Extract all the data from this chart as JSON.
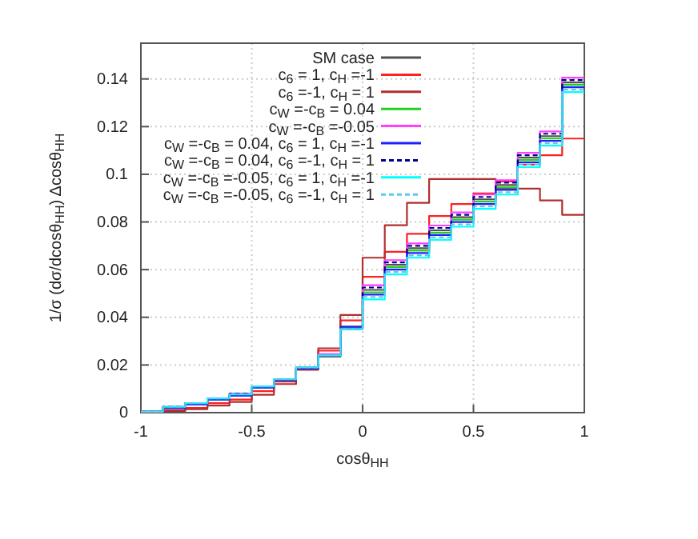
{
  "chart_data": {
    "type": "histogram",
    "xlabel": "cosθ$_{HH}$",
    "ylabel": "1/σ (dσ/dcosθ$_{HH}$) Δcosθ$_{HH}$",
    "bins": [
      -1,
      -0.9,
      -0.8,
      -0.7,
      -0.6,
      -0.5,
      -0.4,
      -0.3,
      -0.2,
      -0.1,
      0,
      0.1,
      0.2,
      0.3,
      0.4,
      0.5,
      0.6,
      0.7,
      0.8,
      0.9,
      1
    ],
    "xlim": [
      -1,
      1
    ],
    "xticks": [
      -1,
      -0.5,
      0,
      0.5,
      1
    ],
    "ylim": [
      0,
      0.155
    ],
    "yticks": [
      0,
      0.02,
      0.04,
      0.06,
      0.08,
      0.1,
      0.12,
      0.14
    ],
    "grid": true,
    "legend": "top left",
    "series": [
      {
        "name": "SM case",
        "color": "#505050",
        "values": [
          0.0004,
          0.002,
          0.0035,
          0.0055,
          0.0072,
          0.0105,
          0.0135,
          0.0185,
          0.0235,
          0.036,
          0.0515,
          0.062,
          0.069,
          0.0765,
          0.082,
          0.0895,
          0.0955,
          0.107,
          0.116,
          0.1385
        ]
      },
      {
        "name": "c$_{6}$ = 1, c$_{H}$ =-1",
        "color": "#ff2020",
        "values": [
          0,
          0.001,
          0.002,
          0.004,
          0.0055,
          0.009,
          0.013,
          0.019,
          0.026,
          0.0387,
          0.057,
          0.0675,
          0.075,
          0.0825,
          0.0875,
          0.092,
          0.097,
          0.104,
          0.108,
          0.115
        ]
      },
      {
        "name": "c$_{6}$ =-1, c$_{H}$ = 1",
        "color": "#b03030",
        "values": [
          0,
          0.0007,
          0.0015,
          0.003,
          0.0045,
          0.0075,
          0.012,
          0.018,
          0.027,
          0.041,
          0.065,
          0.0786,
          0.088,
          0.098,
          0.098,
          0.098,
          0.094,
          0.094,
          0.089,
          0.083
        ]
      },
      {
        "name": "c$_{W}$ =-c$_{B}$ = 0.04",
        "color": "#20d020",
        "values": [
          0.0004,
          0.002,
          0.0035,
          0.0055,
          0.0073,
          0.0105,
          0.0135,
          0.0185,
          0.024,
          0.0355,
          0.0505,
          0.061,
          0.068,
          0.0755,
          0.081,
          0.0885,
          0.0945,
          0.106,
          0.115,
          0.1375
        ]
      },
      {
        "name": "c$_{W}$ =-c$_{B}$ =-0.05",
        "color": "#ff40ff",
        "values": [
          0.0005,
          0.0025,
          0.004,
          0.006,
          0.008,
          0.011,
          0.014,
          0.019,
          0.0245,
          0.035,
          0.0535,
          0.064,
          0.071,
          0.0785,
          0.084,
          0.0915,
          0.0975,
          0.109,
          0.118,
          0.1405
        ]
      },
      {
        "name": "c$_{W}$ =-c$_{B}$ = 0.04, c$_{6}$ = 1, c$_{H}$ =-1",
        "color": "#2020ff",
        "values": [
          0.0004,
          0.002,
          0.0035,
          0.0055,
          0.0072,
          0.0105,
          0.0135,
          0.0185,
          0.024,
          0.036,
          0.0495,
          0.06,
          0.067,
          0.0745,
          0.08,
          0.0875,
          0.0935,
          0.105,
          0.114,
          0.1365
        ]
      },
      {
        "name": "c$_{W}$ =-c$_{B}$ = 0.04, c$_{6}$ =-1, c$_{H}$ = 1",
        "color": "#000090",
        "line_style": "dashed",
        "values": [
          0.0005,
          0.0025,
          0.004,
          0.006,
          0.008,
          0.011,
          0.014,
          0.019,
          0.024,
          0.035,
          0.0525,
          0.063,
          0.07,
          0.0775,
          0.083,
          0.0905,
          0.0965,
          0.108,
          0.117,
          0.1395
        ]
      },
      {
        "name": "c$_{W}$ =-c$_{B}$ =-0.05, c$_{6}$ = 1, c$_{H}$ =-1",
        "color": "#00ffff",
        "values": [
          0.0004,
          0.0025,
          0.004,
          0.006,
          0.0077,
          0.011,
          0.014,
          0.019,
          0.024,
          0.035,
          0.0475,
          0.058,
          0.065,
          0.0725,
          0.078,
          0.0855,
          0.0915,
          0.103,
          0.112,
          0.1345
        ]
      },
      {
        "name": "c$_{W}$ =-c$_{B}$ =-0.05, c$_{6}$ =-1, c$_{H}$ = 1",
        "color": "#60c8e8",
        "line_style": "dashed",
        "values": [
          0.0005,
          0.0025,
          0.004,
          0.006,
          0.0078,
          0.011,
          0.014,
          0.019,
          0.024,
          0.035,
          0.0485,
          0.059,
          0.066,
          0.0735,
          0.079,
          0.0865,
          0.0925,
          0.104,
          0.113,
          0.1355
        ]
      }
    ]
  }
}
